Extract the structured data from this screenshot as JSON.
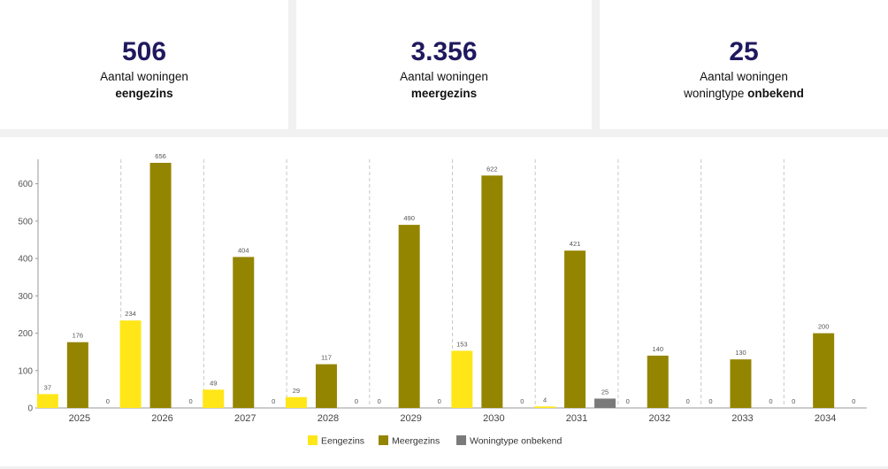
{
  "kpis": [
    {
      "value": "506",
      "line1": "Aantal woningen",
      "prefix": "",
      "bold": "eengezins"
    },
    {
      "value": "3.356",
      "line1": "Aantal woningen",
      "prefix": "",
      "bold": "meergezins"
    },
    {
      "value": "25",
      "line1": "Aantal woningen",
      "prefix": "woningtype ",
      "bold": "onbekend"
    }
  ],
  "colors": {
    "eengezins": "#ffe619",
    "meergezins": "#948500",
    "onbekend": "#7a7a7a"
  },
  "chart_data": {
    "type": "bar",
    "title": "",
    "xlabel": "",
    "ylabel": "",
    "categories": [
      "2025",
      "2026",
      "2027",
      "2028",
      "2029",
      "2030",
      "2031",
      "2032",
      "2033",
      "2034"
    ],
    "series": [
      {
        "name": "Eengezins",
        "key": "eengezins",
        "values": [
          37,
          234,
          49,
          29,
          0,
          153,
          4,
          0,
          0,
          0
        ]
      },
      {
        "name": "Meergezins",
        "key": "meergezins",
        "values": [
          176,
          656,
          404,
          117,
          490,
          622,
          421,
          140,
          130,
          200
        ]
      },
      {
        "name": "Woningtype onbekend",
        "key": "onbekend",
        "values": [
          0,
          0,
          0,
          0,
          0,
          0,
          25,
          0,
          0,
          0
        ]
      }
    ],
    "ylim": [
      0,
      656
    ],
    "yticks": [
      0,
      100,
      200,
      300,
      400,
      500,
      600
    ],
    "grid": "vertical-dashed",
    "legend": "bottom-center"
  }
}
